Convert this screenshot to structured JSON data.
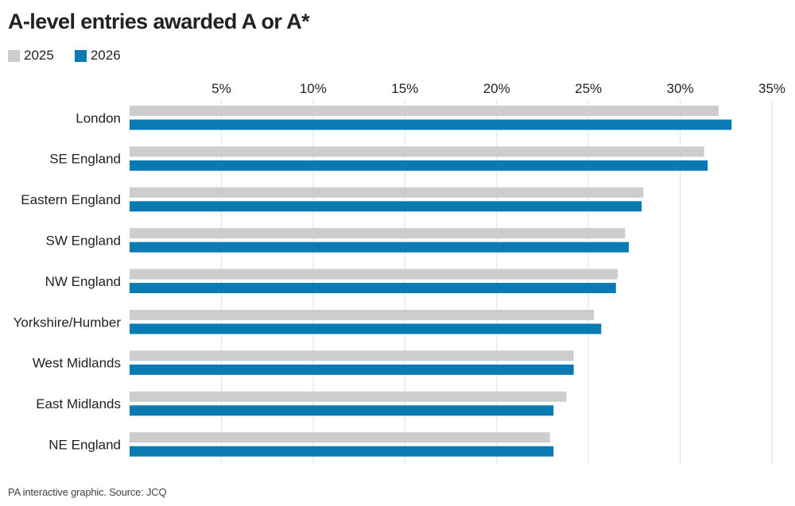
{
  "title": "A-level entries awarded A or A*",
  "source": "PA interactive graphic. Source: JCQ",
  "colors": {
    "series_2025": "#cdcdcd",
    "series_2026": "#0a7ab2",
    "grid": "#e2e2e2",
    "text": "#222222"
  },
  "chart_data": {
    "type": "bar",
    "orientation": "horizontal",
    "title": "A-level entries awarded A or A*",
    "categories": [
      "London",
      "SE England",
      "Eastern England",
      "SW England",
      "NW England",
      "Yorkshire/Humber",
      "West Midlands",
      "East Midlands",
      "NE England"
    ],
    "series": [
      {
        "name": "2025",
        "values": [
          32.1,
          31.3,
          28.0,
          27.0,
          26.6,
          25.3,
          24.2,
          23.8,
          22.9
        ]
      },
      {
        "name": "2026",
        "values": [
          32.8,
          31.5,
          27.9,
          27.2,
          26.5,
          25.7,
          24.2,
          23.1,
          23.1
        ]
      }
    ],
    "x_ticks": [
      5,
      10,
      15,
      20,
      25,
      30,
      35
    ],
    "x_tick_labels": [
      "5%",
      "10%",
      "15%",
      "20%",
      "25%",
      "30%",
      "35%"
    ],
    "xlim": [
      0,
      35
    ],
    "grid": true,
    "legend_position": "top-left"
  }
}
